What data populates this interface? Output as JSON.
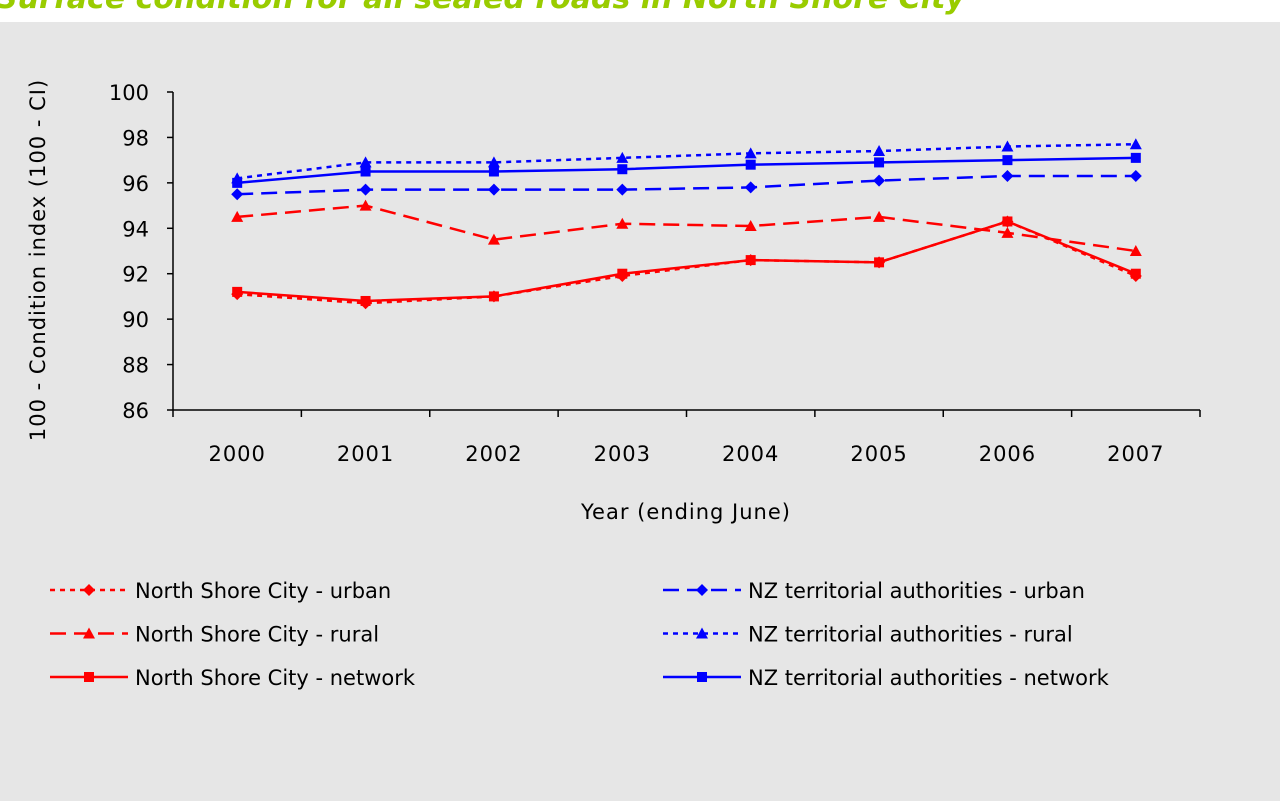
{
  "chart_data": {
    "type": "line",
    "title": "Surface condition for all sealed roads in North Shore City",
    "x_label": "Year (ending June)",
    "y_label": "100 - Condition index (100 - CI)",
    "categories": [
      "2000",
      "2001",
      "2002",
      "2003",
      "2004",
      "2005",
      "2006",
      "2007"
    ],
    "ylim": [
      86,
      100
    ],
    "yticks": [
      86,
      88,
      90,
      92,
      94,
      96,
      98,
      100
    ],
    "grid": false,
    "series": [
      {
        "name": "North Shore City - urban",
        "color": "#ff0000",
        "dash": "dotted",
        "marker": "diamond",
        "values": [
          91.1,
          90.7,
          91.0,
          91.9,
          92.6,
          92.5,
          94.3,
          91.9
        ]
      },
      {
        "name": "North Shore City - rural",
        "color": "#ff0000",
        "dash": "dashed",
        "marker": "triangle",
        "values": [
          94.5,
          95.0,
          93.5,
          94.2,
          94.1,
          94.5,
          93.8,
          93.0
        ]
      },
      {
        "name": "North Shore City - network",
        "color": "#ff0000",
        "dash": "solid",
        "marker": "square",
        "values": [
          91.2,
          90.8,
          91.0,
          92.0,
          92.6,
          92.5,
          94.3,
          92.0
        ]
      },
      {
        "name": "NZ territorial authorities - urban",
        "color": "#0000ff",
        "dash": "dashed",
        "marker": "diamond",
        "values": [
          95.5,
          95.7,
          95.7,
          95.7,
          95.8,
          96.1,
          96.3,
          96.3
        ]
      },
      {
        "name": "NZ territorial authorities - rural",
        "color": "#0000ff",
        "dash": "dotted",
        "marker": "triangle",
        "values": [
          96.2,
          96.9,
          96.9,
          97.1,
          97.3,
          97.4,
          97.6,
          97.7
        ]
      },
      {
        "name": "NZ territorial authorities - network",
        "color": "#0000ff",
        "dash": "solid",
        "marker": "square",
        "values": [
          96.0,
          96.5,
          96.5,
          96.6,
          96.8,
          96.9,
          97.0,
          97.1
        ]
      }
    ]
  }
}
